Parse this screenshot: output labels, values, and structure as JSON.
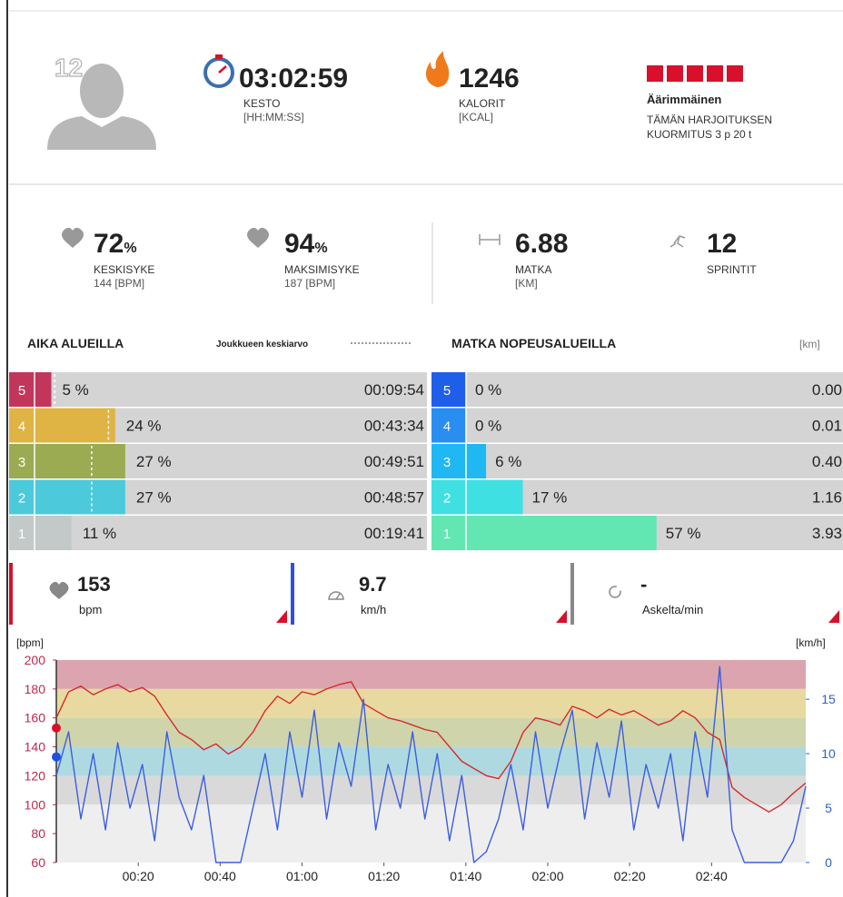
{
  "profile": {
    "number": "12"
  },
  "summary": [
    {
      "value": "03:02:59",
      "label": "KESTO",
      "unit": "[HH:MM:SS]"
    },
    {
      "value": "1246",
      "label": "KALORIT",
      "unit": "[KCAL]"
    }
  ],
  "load": {
    "blocks": 5,
    "level": "Äärimmäinen",
    "line1": "TÄMÄN HARJOITUKSEN",
    "line2": "KUORMITUS 3 p 20 t"
  },
  "stats": [
    {
      "value": "72",
      "suffix": "%",
      "label": "KESKISYKE",
      "sub": "144 [BPM]"
    },
    {
      "value": "94",
      "suffix": "%",
      "label": "MAKSIMISYKE",
      "sub": "187 [BPM]"
    },
    {
      "value": "6.88",
      "label": "MATKA",
      "sub": "[KM]"
    },
    {
      "value": "12",
      "label": "SPRINTIT"
    }
  ],
  "time_zones": {
    "title": "AIKA ALUEILLA",
    "legend": "Joukkueen keskiarvo",
    "rows": [
      {
        "zone": "5",
        "percent": 5,
        "percent_label": "5 %",
        "time": "00:09:54",
        "team_average": 6,
        "color": "#c2365c"
      },
      {
        "zone": "4",
        "percent": 24,
        "percent_label": "24 %",
        "time": "00:43:34",
        "team_average": 22,
        "color": "#dfb445"
      },
      {
        "zone": "3",
        "percent": 27,
        "percent_label": "27 %",
        "time": "00:49:51",
        "team_average": 17,
        "color": "#9aab52"
      },
      {
        "zone": "2",
        "percent": 27,
        "percent_label": "27 %",
        "time": "00:48:57",
        "team_average": 17,
        "color": "#4cc9da"
      },
      {
        "zone": "1",
        "percent": 11,
        "percent_label": "11 %",
        "time": "00:19:41",
        "color": "#c3c8c8"
      }
    ]
  },
  "speed_zones": {
    "title": "MATKA NOPEUSALUEILLA",
    "unit": "[km]",
    "rows": [
      {
        "zone": "5",
        "percent": 0,
        "percent_label": "0 %",
        "distance": "0.00",
        "color": "#1f5ee8"
      },
      {
        "zone": "4",
        "percent": 0,
        "percent_label": "0 %",
        "distance": "0.01",
        "color": "#2a8ef0"
      },
      {
        "zone": "3",
        "percent": 6,
        "percent_label": "6 %",
        "distance": "0.40",
        "color": "#1fb8f2"
      },
      {
        "zone": "2",
        "percent": 17,
        "percent_label": "17 %",
        "distance": "1.16",
        "color": "#3fe0e2"
      },
      {
        "zone": "1",
        "percent": 57,
        "percent_label": "57 %",
        "distance": "3.93",
        "color": "#62e6b2"
      }
    ]
  },
  "live": [
    {
      "value": 153,
      "unit": "bpm",
      "color": "#d8102a"
    },
    {
      "value": 9.7,
      "unit": "km/h",
      "color": "#3050d8"
    },
    {
      "value": "-",
      "unit": "Askelta/min",
      "color": "#888888"
    }
  ],
  "chart_data": {
    "type": "line",
    "ylabel": "[bpm]",
    "y2label": "[km/h]",
    "x": [
      0,
      3,
      6,
      9,
      12,
      15,
      18,
      21,
      24,
      27,
      30,
      33,
      36,
      39,
      42,
      45,
      48,
      51,
      54,
      57,
      60,
      63,
      66,
      69,
      72,
      75,
      78,
      81,
      84,
      87,
      90,
      93,
      96,
      99,
      102,
      105,
      108,
      111,
      114,
      117,
      120,
      123,
      126,
      129,
      132,
      135,
      138,
      141,
      144,
      147,
      150,
      153,
      156,
      159,
      162,
      165,
      168,
      171,
      174,
      177,
      180,
      183
    ],
    "xlim": [
      0,
      183
    ],
    "xticks": [
      {
        "value": 20,
        "label": "00:20"
      },
      {
        "value": 40,
        "label": "00:40"
      },
      {
        "value": 60,
        "label": "01:00"
      },
      {
        "value": 80,
        "label": "01:20"
      },
      {
        "value": 100,
        "label": "01:40"
      },
      {
        "value": 120,
        "label": "02:00"
      },
      {
        "value": 140,
        "label": "02:20"
      },
      {
        "value": 160,
        "label": "02:40"
      }
    ],
    "ylim": [
      60,
      200
    ],
    "yticks": [
      60,
      80,
      100,
      120,
      140,
      160,
      180,
      200
    ],
    "y2lim": [
      0,
      18.6
    ],
    "y2ticks": [
      0,
      5,
      10,
      15
    ],
    "bands": [
      {
        "from": 180,
        "to": 200,
        "color": "#dba4ae"
      },
      {
        "from": 160,
        "to": 180,
        "color": "#e8d9a0"
      },
      {
        "from": 140,
        "to": 160,
        "color": "#cfd4ab"
      },
      {
        "from": 120,
        "to": 140,
        "color": "#afd9e1"
      },
      {
        "from": 100,
        "to": 120,
        "color": "#d9d9d9"
      },
      {
        "from": 60,
        "to": 100,
        "color": "#eeeeee"
      }
    ],
    "series": [
      {
        "color": "#d42a2a",
        "values": [
          160,
          178,
          182,
          176,
          180,
          183,
          178,
          181,
          175,
          162,
          150,
          145,
          138,
          142,
          135,
          140,
          150,
          165,
          175,
          170,
          178,
          176,
          180,
          183,
          185,
          170,
          165,
          160,
          158,
          155,
          152,
          150,
          140,
          130,
          125,
          120,
          118,
          130,
          150,
          160,
          158,
          155,
          168,
          165,
          160,
          166,
          162,
          165,
          160,
          155,
          158,
          165,
          160,
          150,
          145,
          112,
          105,
          100,
          95,
          100,
          108,
          115
        ]
      },
      {
        "color": "#3b5ee0",
        "axis": "y2",
        "values": [
          8,
          12,
          4,
          10,
          3,
          11,
          5,
          9,
          2,
          12,
          6,
          3,
          8,
          0,
          0,
          0,
          5,
          10,
          3,
          12,
          6,
          14,
          4,
          11,
          7,
          15,
          3,
          9,
          5,
          12,
          4,
          10,
          2,
          8,
          0,
          1,
          4,
          9,
          3,
          12,
          5,
          10,
          14,
          4,
          11,
          6,
          13,
          3,
          9,
          5,
          10,
          2,
          12,
          6,
          18,
          3,
          0,
          0,
          0,
          0,
          2,
          7
        ]
      }
    ]
  }
}
